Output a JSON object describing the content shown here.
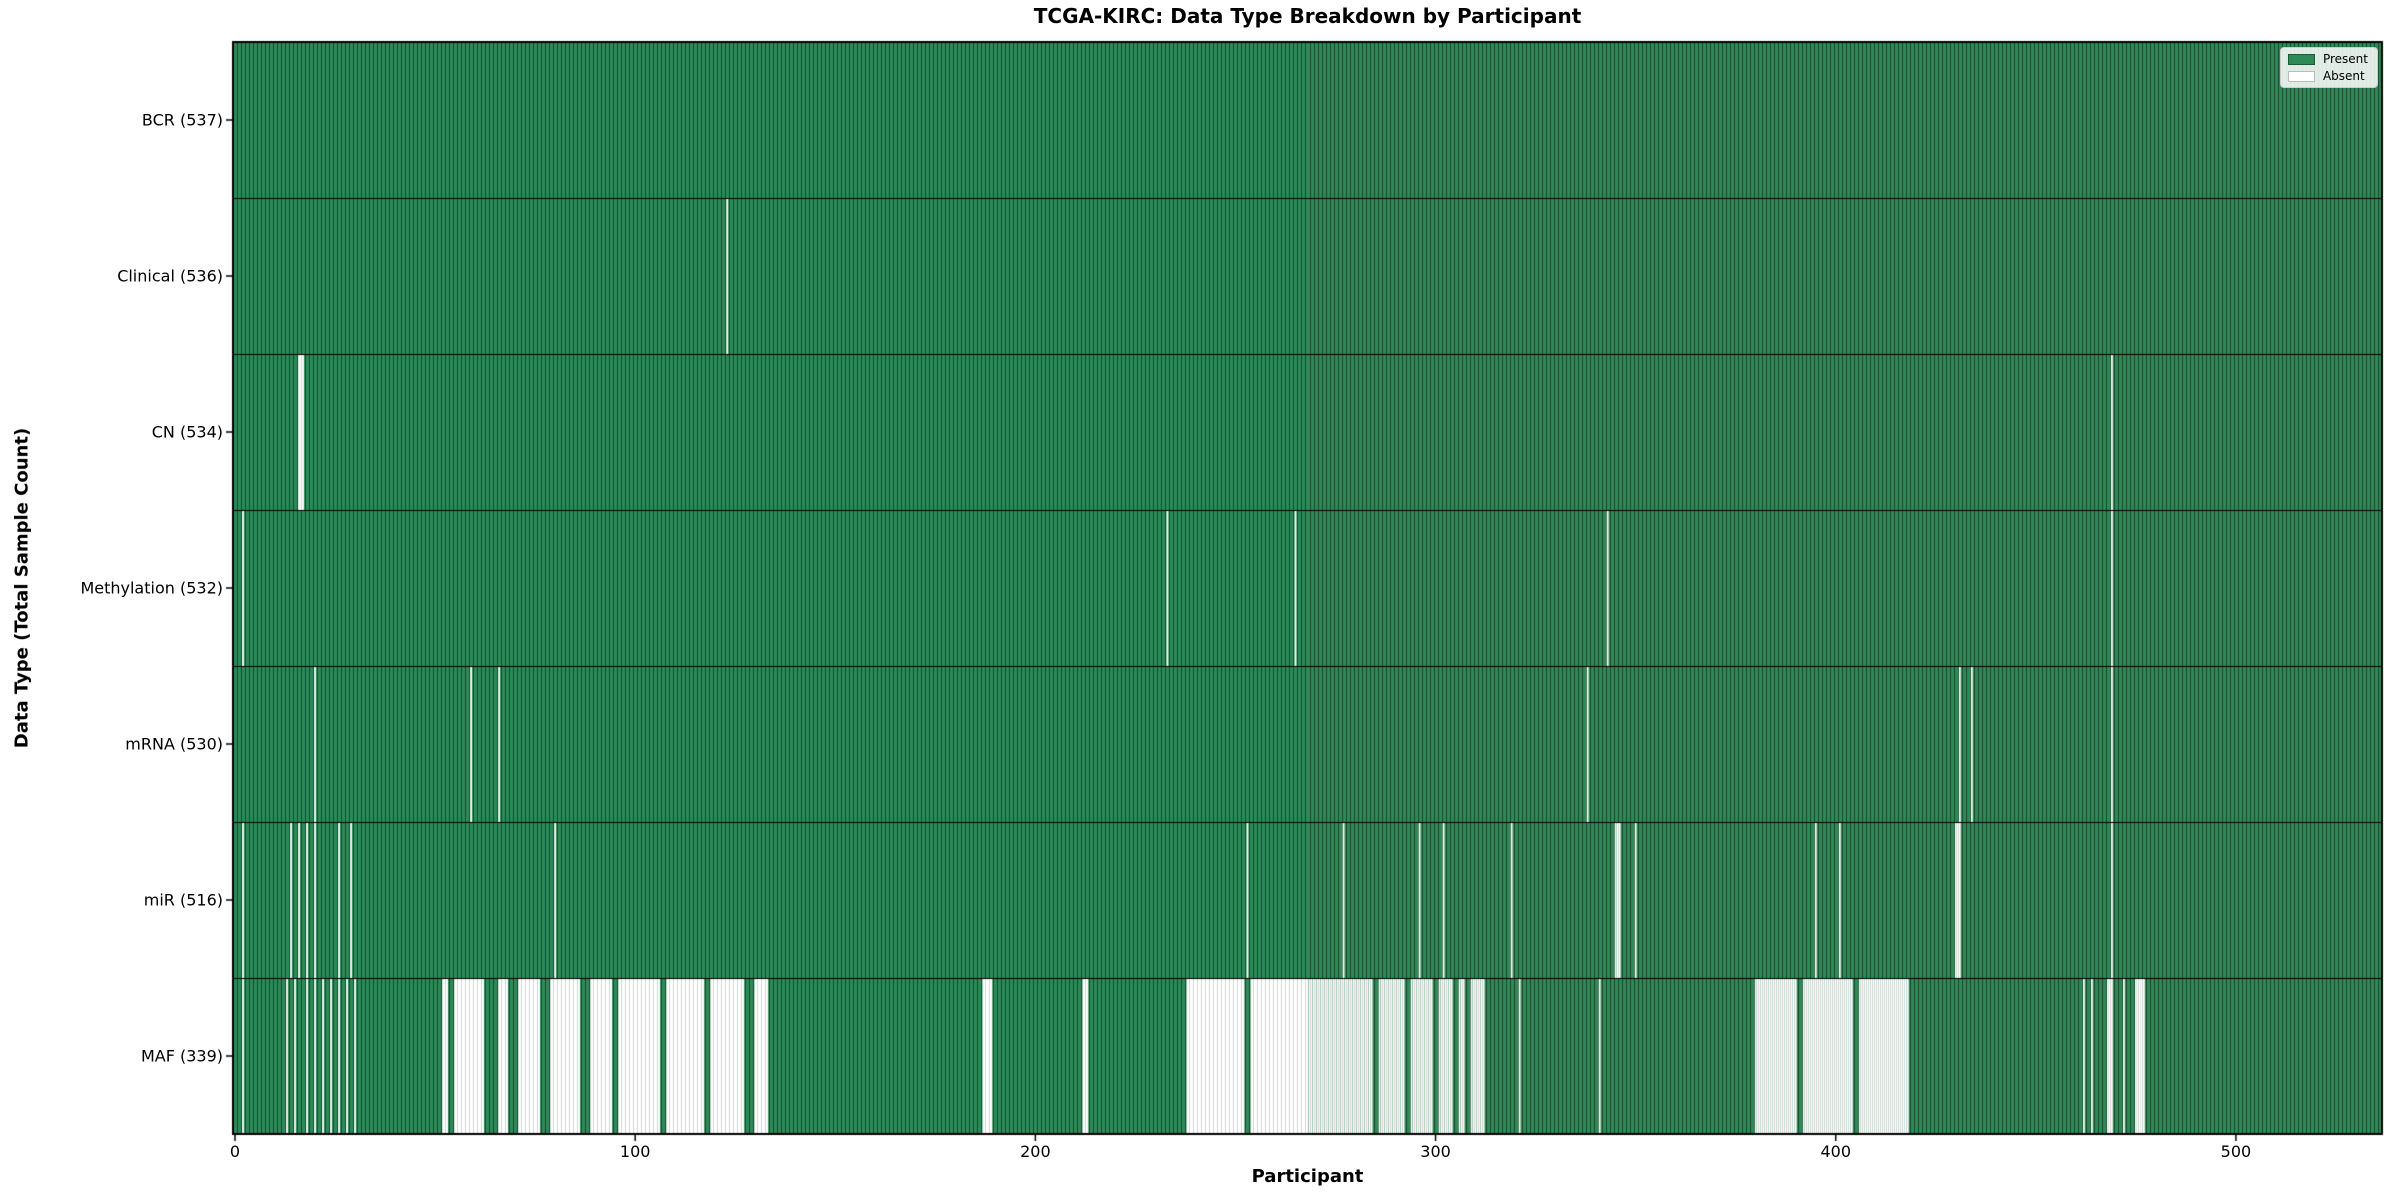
{
  "chart_data": {
    "type": "heatmap",
    "title": "TCGA-KIRC: Data Type Breakdown by Participant",
    "xlabel": "Participant",
    "ylabel": "Data Type (Total Sample Count)",
    "x_ticks": [
      0,
      100,
      200,
      300,
      400,
      500
    ],
    "n_participants": 537,
    "xlim": [
      -0.5,
      536.5
    ],
    "grid": false,
    "legend_position": "upper right",
    "legend": [
      {
        "label": "Present",
        "color": "#2e8b57"
      },
      {
        "label": "Absent",
        "color": "#ffffff"
      }
    ],
    "colors": {
      "present": "#2e8b57",
      "absent": "#ffffff",
      "present_edge": "rgba(0,0,0,0.5)",
      "absent_edge": "#d4d4d4",
      "row_separator": "#000000",
      "axis_border": "#000000"
    },
    "rows": [
      {
        "label": "BCR (537)",
        "data_type": "BCR",
        "total": 537,
        "absent": []
      },
      {
        "label": "Clinical (536)",
        "data_type": "Clinical",
        "total": 536,
        "absent": [
          123
        ]
      },
      {
        "label": "CN (534)",
        "data_type": "CN",
        "total": 534,
        "absent": [
          16,
          17,
          469
        ]
      },
      {
        "label": "Methylation (532)",
        "data_type": "Methylation",
        "total": 532,
        "absent": [
          2,
          233,
          265,
          343,
          469
        ]
      },
      {
        "label": "mRNA (530)",
        "data_type": "mRNA",
        "total": 530,
        "absent": [
          20,
          59,
          66,
          338,
          431,
          434,
          469
        ]
      },
      {
        "label": "miR (516)",
        "data_type": "miR",
        "total": 516,
        "absent": [
          2,
          14,
          16,
          18,
          20,
          26,
          29,
          80,
          253,
          277,
          296,
          302,
          319,
          345,
          346,
          350,
          395,
          401,
          430,
          431,
          469
        ]
      },
      {
        "label": "MAF (339)",
        "data_type": "MAF",
        "total": 339,
        "absent": [
          2,
          13,
          15,
          18,
          20,
          22,
          24,
          26,
          28,
          30,
          [
            52,
            53
          ],
          [
            55,
            62
          ],
          [
            66,
            68
          ],
          [
            71,
            76
          ],
          [
            79,
            86
          ],
          [
            89,
            94
          ],
          [
            96,
            106
          ],
          [
            108,
            117
          ],
          [
            119,
            127
          ],
          [
            130,
            133
          ],
          [
            187,
            189
          ],
          [
            212,
            213
          ],
          [
            238,
            252
          ],
          [
            254,
            284
          ],
          [
            286,
            292
          ],
          [
            294,
            299
          ],
          [
            301,
            304
          ],
          [
            306,
            307
          ],
          [
            309,
            312
          ],
          321,
          341,
          [
            380,
            390
          ],
          [
            392,
            404
          ],
          [
            406,
            418
          ],
          462,
          464,
          [
            468,
            469
          ],
          472,
          [
            475,
            477
          ]
        ]
      }
    ]
  }
}
